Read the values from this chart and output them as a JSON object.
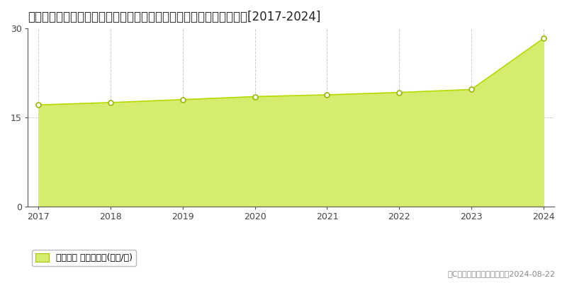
{
  "title": "大分県大分市大字上宗方字虚言迫５６７番８７　地価公示　地価推移[2017-2024]",
  "years": [
    2017,
    2018,
    2019,
    2020,
    2021,
    2022,
    2023,
    2024
  ],
  "values": [
    17.1,
    17.5,
    18.0,
    18.5,
    18.8,
    19.2,
    19.7,
    28.3
  ],
  "fill_color": "#d4ed6e",
  "line_color": "#b8d900",
  "marker_facecolor": "#ffffff",
  "marker_edgecolor": "#9ab800",
  "grid_color": "#cccccc",
  "background_color": "#ffffff",
  "ylim": [
    0,
    30
  ],
  "yticks": [
    0,
    15,
    30
  ],
  "xticks": [
    2017,
    2018,
    2019,
    2020,
    2021,
    2022,
    2023,
    2024
  ],
  "legend_label": "地価公示 平均坪単価(万円/坪)",
  "copyright_text": "（C）土地価格ドットコム　2024-08-22",
  "title_fontsize": 12,
  "axis_fontsize": 9,
  "legend_fontsize": 9,
  "copyright_fontsize": 8
}
